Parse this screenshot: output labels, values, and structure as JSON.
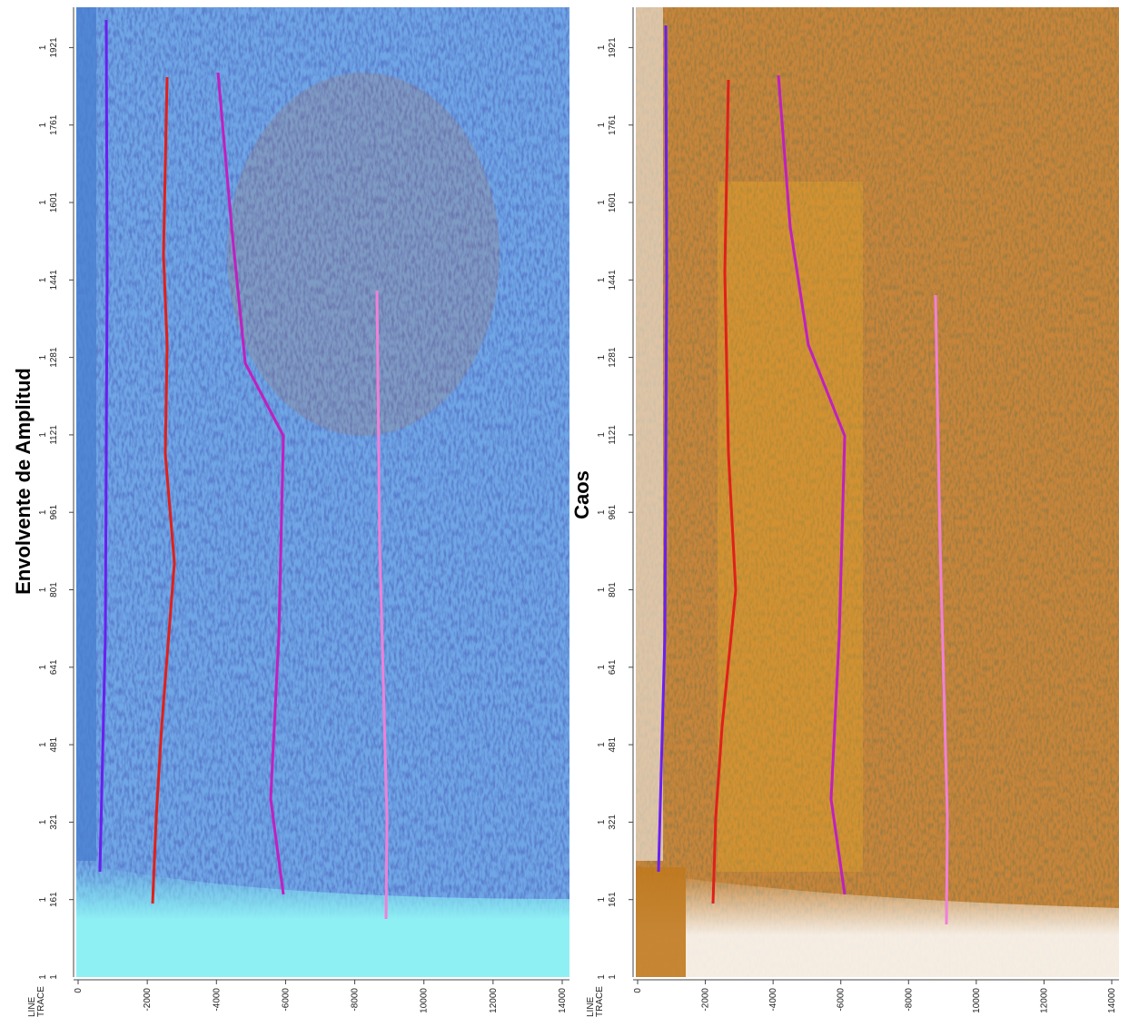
{
  "panels": [
    {
      "title": "Envolvente de Amplitud"
    },
    {
      "title": "Caos"
    }
  ],
  "axis": {
    "corner_label": {
      "line": "LINE",
      "trace": "TRACE",
      "line_value": "1",
      "trace_value": "1"
    },
    "yticks": [
      {
        "line": "1",
        "trace": "161"
      },
      {
        "line": "1",
        "trace": "321"
      },
      {
        "line": "1",
        "trace": "481"
      },
      {
        "line": "1",
        "trace": "641"
      },
      {
        "line": "1",
        "trace": "801"
      },
      {
        "line": "1",
        "trace": "961"
      },
      {
        "line": "1",
        "trace": "1121"
      },
      {
        "line": "1",
        "trace": "1281"
      },
      {
        "line": "1",
        "trace": "1441"
      },
      {
        "line": "1",
        "trace": "1601"
      },
      {
        "line": "1",
        "trace": "1761"
      },
      {
        "line": "1",
        "trace": "1921"
      }
    ],
    "xticks": [
      "0",
      "-2000",
      "-4000",
      "-6000",
      "-8000",
      "10000",
      "12000",
      "14000"
    ]
  }
}
